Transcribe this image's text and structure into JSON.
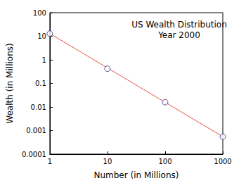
{
  "chart_data": {
    "type": "scatter",
    "title": "US Wealth Distribution\nYear 2000",
    "xlabel": "Number (in Millions)",
    "ylabel": "Wealth (in Millions)",
    "log": true,
    "grid": false,
    "xlim": [
      1,
      1000
    ],
    "xticks": [
      1,
      10,
      100,
      1000
    ],
    "ylim": [
      0.0001,
      100
    ],
    "yticks": [
      0.0001,
      0.001,
      0.01,
      0.1,
      1,
      10,
      100
    ],
    "series": [
      {
        "type": "line",
        "color": "#e8534a",
        "line_style": "solid",
        "x": [
          1,
          1000
        ],
        "values": [
          13,
          0.00055
        ]
      },
      {
        "type": "scatter",
        "color": "#2b2b8c",
        "marker": "circle_open",
        "x": [
          1,
          10,
          100,
          1000
        ],
        "values": [
          13,
          0.42,
          0.016,
          0.00055
        ]
      }
    ]
  }
}
